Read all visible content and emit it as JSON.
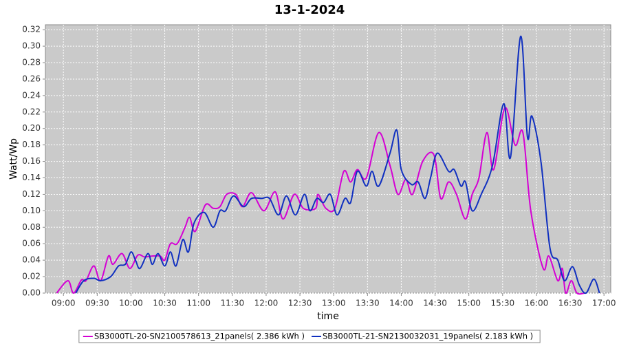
{
  "chart_data": {
    "type": "line",
    "title": "13-1-2024",
    "x_label": "time",
    "y_label": "Watt/Wp",
    "xlim": [
      524,
      1026
    ],
    "ylim": [
      0,
      0.326
    ],
    "grid": true,
    "legend": "bottom",
    "xticks": [
      {
        "value": 540,
        "label": "09:00"
      },
      {
        "value": 570,
        "label": "09:30"
      },
      {
        "value": 600,
        "label": "10:00"
      },
      {
        "value": 630,
        "label": "10:30"
      },
      {
        "value": 660,
        "label": "11:00"
      },
      {
        "value": 690,
        "label": "11:30"
      },
      {
        "value": 720,
        "label": "12:00"
      },
      {
        "value": 750,
        "label": "12:30"
      },
      {
        "value": 780,
        "label": "13:00"
      },
      {
        "value": 810,
        "label": "13:30"
      },
      {
        "value": 840,
        "label": "14:00"
      },
      {
        "value": 870,
        "label": "14:30"
      },
      {
        "value": 900,
        "label": "15:00"
      },
      {
        "value": 930,
        "label": "15:30"
      },
      {
        "value": 960,
        "label": "16:00"
      },
      {
        "value": 990,
        "label": "16:30"
      },
      {
        "value": 1020,
        "label": "17:00"
      }
    ],
    "yticks": [
      {
        "value": 0,
        "label": "0.00"
      },
      {
        "value": 0.02,
        "label": "0.02"
      },
      {
        "value": 0.04,
        "label": "0.04"
      },
      {
        "value": 0.06,
        "label": "0.06"
      },
      {
        "value": 0.08,
        "label": "0.08"
      },
      {
        "value": 0.1,
        "label": "0.10"
      },
      {
        "value": 0.12,
        "label": "0.12"
      },
      {
        "value": 0.14,
        "label": "0.14"
      },
      {
        "value": 0.16,
        "label": "0.16"
      },
      {
        "value": 0.18,
        "label": "0.18"
      },
      {
        "value": 0.2,
        "label": "0.20"
      },
      {
        "value": 0.22,
        "label": "0.22"
      },
      {
        "value": 0.24,
        "label": "0.24"
      },
      {
        "value": 0.26,
        "label": "0.26"
      },
      {
        "value": 0.28,
        "label": "0.28"
      },
      {
        "value": 0.3,
        "label": "0.30"
      },
      {
        "value": 0.32,
        "label": "0.32"
      }
    ],
    "series": [
      {
        "name": "SB3000TL-20-SN2100578613_21panels( 2.386 kWh )",
        "color": "#d400d4",
        "x": [
          534,
          544,
          549,
          556,
          560,
          567,
          573,
          580,
          584,
          592,
          599,
          606,
          612,
          619,
          626,
          630,
          635,
          641,
          648,
          652,
          657,
          666,
          673,
          679,
          685,
          693,
          699,
          707,
          718,
          728,
          735,
          745,
          753,
          764,
          766,
          773,
          781,
          789,
          795,
          801,
          809,
          820,
          830,
          837,
          844,
          850,
          859,
          869,
          875,
          882,
          889,
          897,
          903,
          909,
          916,
          922,
          932,
          941,
          948,
          955,
          966,
          971,
          979,
          983,
          986,
          991,
          996,
          1003
        ],
        "values": [
          0,
          0.015,
          0,
          0.016,
          0.015,
          0.033,
          0.015,
          0.045,
          0.035,
          0.048,
          0.03,
          0.046,
          0.044,
          0.045,
          0.045,
          0.04,
          0.06,
          0.06,
          0.08,
          0.092,
          0.075,
          0.107,
          0.103,
          0.105,
          0.12,
          0.12,
          0.105,
          0.122,
          0.1,
          0.123,
          0.09,
          0.12,
          0.103,
          0.103,
          0.12,
          0.103,
          0.103,
          0.148,
          0.135,
          0.15,
          0.14,
          0.195,
          0.155,
          0.12,
          0.138,
          0.12,
          0.16,
          0.168,
          0.115,
          0.135,
          0.12,
          0.09,
          0.12,
          0.14,
          0.195,
          0.15,
          0.225,
          0.18,
          0.195,
          0.1,
          0.03,
          0.045,
          0.015,
          0.03,
          0,
          0.015,
          0,
          0
        ]
      },
      {
        "name": "SB3000TL-21-SN2130032031_19panels( 2.183 kWh )",
        "color": "#1030c0",
        "x": [
          551,
          558,
          567,
          573,
          582,
          589,
          595,
          600,
          604,
          608,
          615,
          619,
          624,
          630,
          635,
          640,
          646,
          651,
          656,
          665,
          673,
          679,
          684,
          691,
          700,
          707,
          716,
          723,
          731,
          738,
          746,
          754,
          759,
          765,
          771,
          777,
          783,
          790,
          795,
          801,
          809,
          814,
          820,
          830,
          836,
          840,
          849,
          855,
          861,
          866,
          872,
          882,
          887,
          893,
          897,
          903,
          911,
          921,
          931,
          937,
          946,
          952,
          956,
          964,
          972,
          979,
          985,
          992,
          998,
          1004,
          1011,
          1016
        ],
        "values": [
          0,
          0.015,
          0.018,
          0.015,
          0.02,
          0.033,
          0.035,
          0.05,
          0.04,
          0.03,
          0.048,
          0.035,
          0.048,
          0.033,
          0.05,
          0.033,
          0.065,
          0.05,
          0.085,
          0.098,
          0.08,
          0.1,
          0.1,
          0.118,
          0.105,
          0.115,
          0.115,
          0.115,
          0.095,
          0.118,
          0.095,
          0.12,
          0.1,
          0.115,
          0.11,
          0.12,
          0.095,
          0.115,
          0.11,
          0.148,
          0.13,
          0.148,
          0.13,
          0.17,
          0.198,
          0.15,
          0.132,
          0.135,
          0.115,
          0.14,
          0.17,
          0.148,
          0.15,
          0.13,
          0.135,
          0.1,
          0.12,
          0.155,
          0.23,
          0.165,
          0.312,
          0.19,
          0.215,
          0.16,
          0.055,
          0.04,
          0.015,
          0.032,
          0.01,
          0,
          0.017,
          0
        ]
      }
    ]
  }
}
